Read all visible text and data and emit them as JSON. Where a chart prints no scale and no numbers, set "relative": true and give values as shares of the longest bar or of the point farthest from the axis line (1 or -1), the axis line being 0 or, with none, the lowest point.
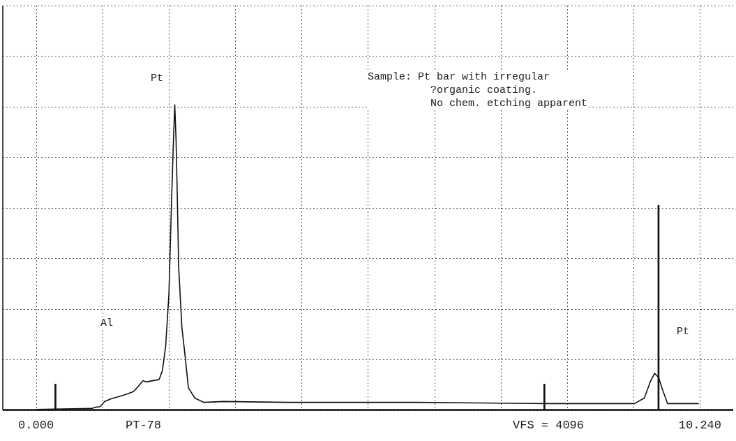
{
  "chart_data": {
    "type": "line",
    "relative": true,
    "xlim": [
      0,
      10.24
    ],
    "xticks": [
      {
        "value": 0,
        "label": "0.000"
      },
      {
        "value": 1.024,
        "label": null
      },
      {
        "value": 2.048,
        "label": null
      },
      {
        "value": 3.072,
        "label": null
      },
      {
        "value": 4.096,
        "label": null
      },
      {
        "value": 5.12,
        "label": null
      },
      {
        "value": 6.144,
        "label": null
      },
      {
        "value": 7.168,
        "label": null
      },
      {
        "value": 8.192,
        "label": null
      },
      {
        "value": 9.216,
        "label": null
      },
      {
        "value": 10.24,
        "label": "10.240"
      }
    ],
    "tick_labels": "x",
    "grid": true,
    "legend": false,
    "marker": "none",
    "line_style": "solid",
    "series": [
      {
        "color": "#111111",
        "x": [
          0,
          0.86,
          0.91,
          0.99,
          1.06,
          1.16,
          1.31,
          1.41,
          1.5,
          1.58,
          1.65,
          1.7,
          1.8,
          1.9,
          1.95,
          2.0,
          2.05,
          2.09,
          2.12,
          2.14,
          2.16,
          2.18,
          2.2,
          2.25,
          2.3,
          2.35,
          2.45,
          2.59,
          2.89,
          3.88,
          4.87,
          5.86,
          6.85,
          7.84,
          8.83,
          9.23,
          9.38,
          9.48,
          9.54,
          9.6,
          9.67,
          9.74,
          10.22
        ],
        "values": [
          0.002,
          0.005,
          0.009,
          0.011,
          0.028,
          0.037,
          0.046,
          0.053,
          0.06,
          0.078,
          0.096,
          0.092,
          0.096,
          0.1,
          0.13,
          0.21,
          0.38,
          0.68,
          0.885,
          1,
          0.885,
          0.69,
          0.47,
          0.27,
          0.176,
          0.073,
          0.039,
          0.025,
          0.028,
          0.025,
          0.025,
          0.025,
          0.023,
          0.021,
          0.021,
          0.021,
          0.039,
          0.096,
          0.12,
          0.107,
          0.062,
          0.021,
          0.021
        ]
      },
      {
        "type": "bar",
        "color": "#111111",
        "x": [
          0.3,
          7.84,
          9.6
        ],
        "values": [
          0.085,
          0.085,
          0.67
        ]
      }
    ],
    "annotations": [
      "Pt",
      "Al",
      "Pt",
      "Sample: Pt bar with irregular\n          ?organic coating.\n          No chem. etching apparent",
      "PT-78",
      "VFS = 4096"
    ]
  }
}
